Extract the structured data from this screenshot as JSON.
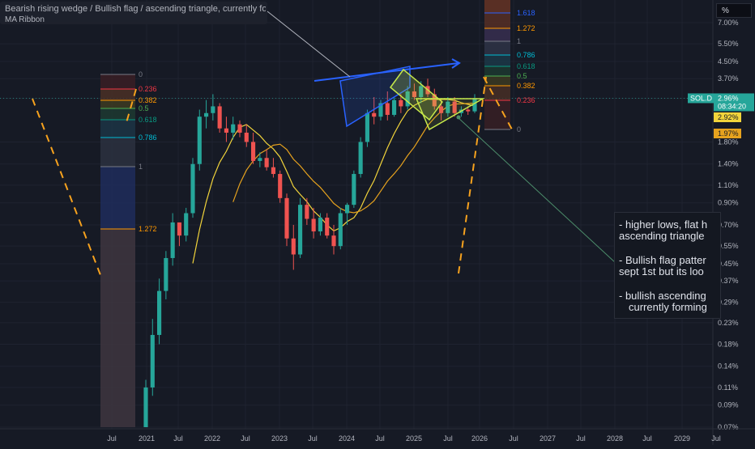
{
  "header": {
    "line1": "Bearish rising wedge / Bullish flag / ascending triangle, currently forming a bearish rising wedge",
    "line2": "MA Ribbon"
  },
  "scale_button": "%",
  "notes": [
    "- higher lows, flat h",
    "ascending triangle",
    "- Bullish flag patter",
    "sept 1st but its loo",
    "- bullish ascending",
    "currently forming"
  ],
  "price_labels": {
    "symbol": "SOL.D",
    "last": "2.96%",
    "countdown": "08:34:20",
    "ma1": "2.92%",
    "ma2": "1.97%"
  },
  "colors": {
    "background": "#161a25",
    "up": "#26a69a",
    "down": "#ef5350",
    "ma_fast": "#f2d43b",
    "ma_slow": "#e6a21e",
    "fib_dashed": "#f7a21e",
    "wedge": "#2962ff",
    "flag": "#c6e84a"
  },
  "chart_data": {
    "type": "candlestick",
    "y_scale": "log",
    "y_unit": "%",
    "y_ticks": [
      "7.00%",
      "5.50%",
      "4.50%",
      "3.70%",
      "2.96%",
      "1.80%",
      "1.40%",
      "1.10%",
      "0.90%",
      "0.70%",
      "0.55%",
      "0.45%",
      "0.37%",
      "0.29%",
      "0.23%",
      "0.18%",
      "0.14%",
      "0.11%",
      "0.09%",
      "0.07%"
    ],
    "x_ticks": [
      "Jul",
      "2021",
      "Jul",
      "2022",
      "Jul",
      "2023",
      "Jul",
      "2024",
      "Jul",
      "2025",
      "Jul",
      "2026",
      "Jul",
      "2027",
      "Jul",
      "2028",
      "Jul",
      "2029",
      "Jul"
    ],
    "candles": [
      [
        0.07,
        0.12,
        0.07,
        0.11
      ],
      [
        0.11,
        0.24,
        0.1,
        0.2
      ],
      [
        0.2,
        0.38,
        0.18,
        0.33
      ],
      [
        0.33,
        0.52,
        0.3,
        0.48
      ],
      [
        0.48,
        0.8,
        0.44,
        0.72
      ],
      [
        0.72,
        0.72,
        0.55,
        0.62
      ],
      [
        0.62,
        0.85,
        0.58,
        0.8
      ],
      [
        0.8,
        1.5,
        0.76,
        1.4
      ],
      [
        1.4,
        2.6,
        1.3,
        2.4
      ],
      [
        2.4,
        2.9,
        2.1,
        2.5
      ],
      [
        2.5,
        3.1,
        2.3,
        2.7
      ],
      [
        2.7,
        2.8,
        2.0,
        2.1
      ],
      [
        2.1,
        2.4,
        1.8,
        2.0
      ],
      [
        2.0,
        2.4,
        1.85,
        2.2
      ],
      [
        2.2,
        2.3,
        1.9,
        2.0
      ],
      [
        2.0,
        2.2,
        1.7,
        1.8
      ],
      [
        1.8,
        2.0,
        1.4,
        1.45
      ],
      [
        1.45,
        1.6,
        1.35,
        1.5
      ],
      [
        1.5,
        1.65,
        1.3,
        1.35
      ],
      [
        1.35,
        1.5,
        1.2,
        1.25
      ],
      [
        1.25,
        1.3,
        0.9,
        0.95
      ],
      [
        0.95,
        1.0,
        0.55,
        0.6
      ],
      [
        0.6,
        0.7,
        0.42,
        0.5
      ],
      [
        0.5,
        0.95,
        0.48,
        0.88
      ],
      [
        0.88,
        0.95,
        0.7,
        0.75
      ],
      [
        0.75,
        0.85,
        0.6,
        0.65
      ],
      [
        0.65,
        0.8,
        0.62,
        0.76
      ],
      [
        0.76,
        0.8,
        0.6,
        0.62
      ],
      [
        0.62,
        0.7,
        0.5,
        0.55
      ],
      [
        0.55,
        0.85,
        0.53,
        0.8
      ],
      [
        0.8,
        0.9,
        0.7,
        0.88
      ],
      [
        0.88,
        1.3,
        0.85,
        1.25
      ],
      [
        1.25,
        1.9,
        1.2,
        1.8
      ],
      [
        1.8,
        2.6,
        1.7,
        2.5
      ],
      [
        2.5,
        3.0,
        2.2,
        2.4
      ],
      [
        2.4,
        2.9,
        2.3,
        2.8
      ],
      [
        2.8,
        3.2,
        2.3,
        2.45
      ],
      [
        2.45,
        3.0,
        2.4,
        2.9
      ],
      [
        2.9,
        3.1,
        2.5,
        2.7
      ],
      [
        2.7,
        3.4,
        2.6,
        3.2
      ],
      [
        3.2,
        3.5,
        2.9,
        3.0
      ],
      [
        3.0,
        3.6,
        2.8,
        3.4
      ],
      [
        3.4,
        3.7,
        3.0,
        3.1
      ],
      [
        3.1,
        3.3,
        2.6,
        2.7
      ],
      [
        2.7,
        2.9,
        2.3,
        2.5
      ],
      [
        2.5,
        3.0,
        2.4,
        2.85
      ],
      [
        2.85,
        3.0,
        2.4,
        2.5
      ],
      [
        2.5,
        2.7,
        2.4,
        2.6
      ],
      [
        2.6,
        2.7,
        2.45,
        2.55
      ],
      [
        2.55,
        3.1,
        2.5,
        2.96
      ]
    ],
    "levels": {
      "left_fib": [
        "0",
        "0.236",
        "0.382",
        "0.5",
        "0.618",
        "0.786",
        "1",
        "1.272"
      ],
      "right_fib": [
        "1.618",
        "1.272",
        "1",
        "0.786",
        "0.618",
        "0.5",
        "0.382",
        "0.236",
        "0"
      ]
    }
  }
}
